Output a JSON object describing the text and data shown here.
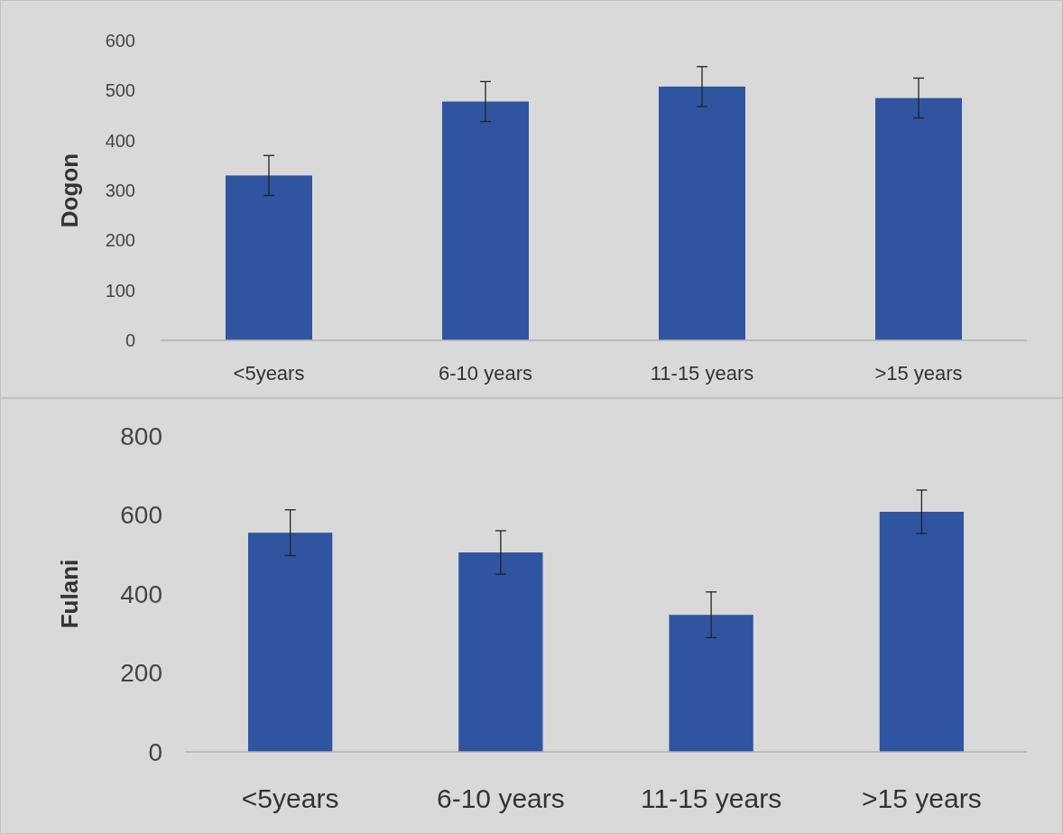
{
  "chart_data": [
    {
      "type": "bar",
      "ylabel": "Dogon",
      "categories": [
        "<5years",
        "6-10 years",
        "11-15 years",
        ">15 years"
      ],
      "values": [
        330,
        478,
        508,
        485
      ],
      "errors": [
        40,
        40,
        40,
        40
      ],
      "color": "#2f55a0",
      "ylim": [
        0,
        600
      ],
      "yticks": [
        0,
        100,
        200,
        300,
        400,
        500,
        600
      ],
      "grid": false
    },
    {
      "type": "bar",
      "ylabel": "Fulani",
      "categories": [
        "<5years",
        "6-10 years",
        "11-15 years",
        ">15 years"
      ],
      "values": [
        555,
        505,
        347,
        608
      ],
      "errors": [
        58,
        55,
        58,
        55
      ],
      "color": "#2f55a0",
      "ylim": [
        0,
        800
      ],
      "yticks": [
        0,
        200,
        400,
        600,
        800
      ],
      "grid": false
    }
  ]
}
